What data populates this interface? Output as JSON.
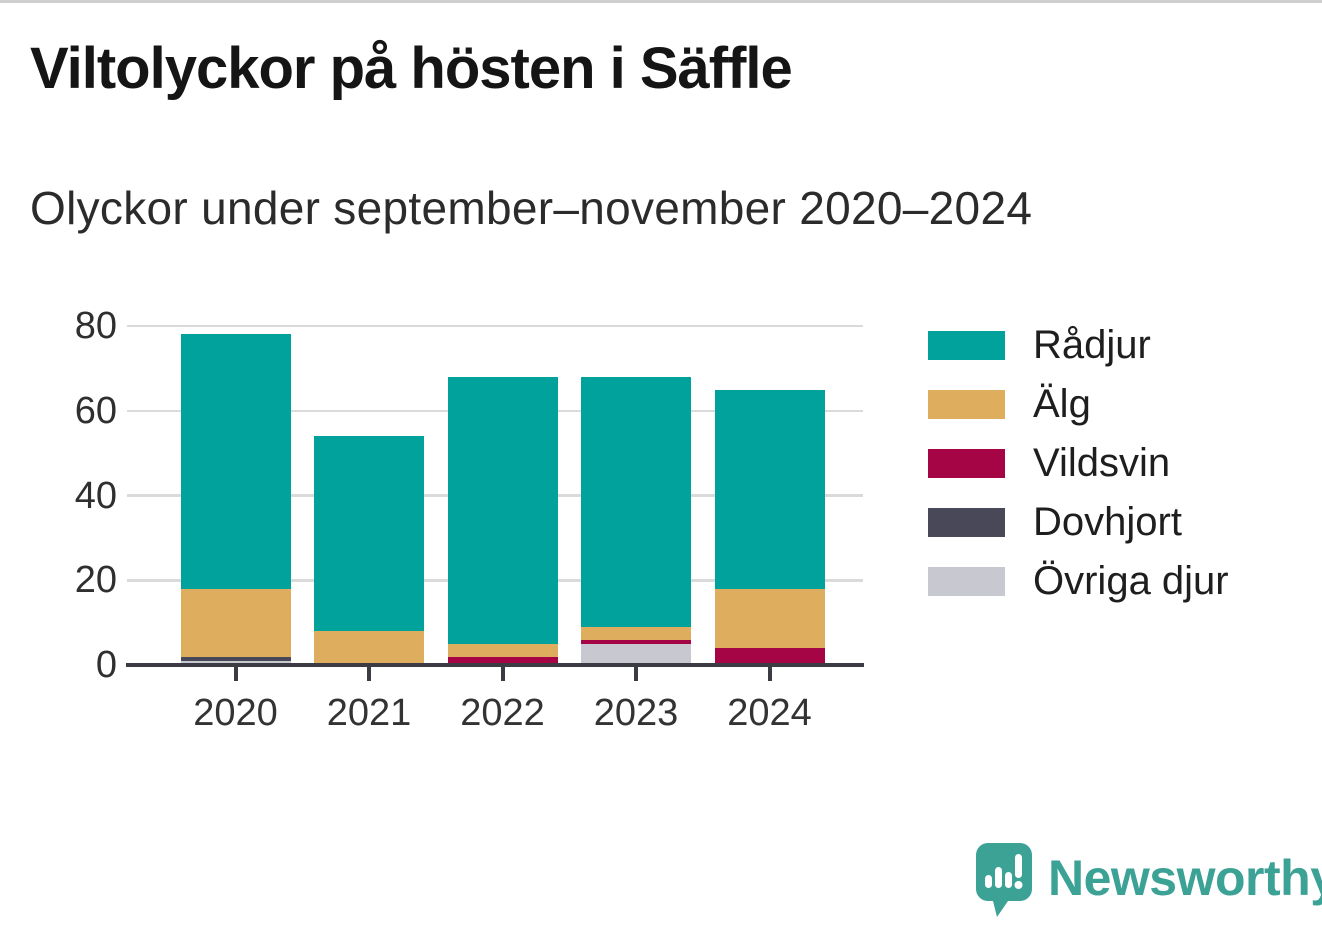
{
  "page": {
    "title": "Viltolyckor på hösten i Säffle",
    "subtitle": "Olyckor under september–november 2020–2024"
  },
  "chart_data": {
    "type": "bar",
    "stacked": true,
    "title": "Viltolyckor på hösten i Säffle",
    "subtitle": "Olyckor under september–november 2020–2024",
    "categories": [
      "2020",
      "2021",
      "2022",
      "2023",
      "2024"
    ],
    "series": [
      {
        "name": "Rådjur",
        "color": "#00A29B",
        "values": [
          60,
          46,
          63,
          59,
          47
        ]
      },
      {
        "name": "Älg",
        "color": "#DEAE5E",
        "values": [
          16,
          8,
          3,
          3,
          14
        ]
      },
      {
        "name": "Vildsvin",
        "color": "#A50544",
        "values": [
          0,
          0,
          2,
          1,
          4
        ]
      },
      {
        "name": "Dovhjort",
        "color": "#484858",
        "values": [
          1,
          0,
          0,
          0,
          0
        ]
      },
      {
        "name": "Övriga djur",
        "color": "#C8C8D0",
        "values": [
          1,
          0,
          0,
          5,
          0
        ]
      }
    ],
    "totals": [
      78,
      54,
      68,
      68,
      65
    ],
    "xlabel": "",
    "ylabel": "",
    "ylim": [
      0,
      80
    ],
    "yticks": [
      0,
      20,
      40,
      60,
      80
    ],
    "grid": "horizontal",
    "legend_position": "right",
    "axis_color": "#3b3b44",
    "gridline_color": "#dadada"
  },
  "branding": {
    "logo_text": "Newsworthy",
    "logo_color": "#3CA295",
    "logo_icon": "newsworthy-chart-bubble-icon"
  }
}
